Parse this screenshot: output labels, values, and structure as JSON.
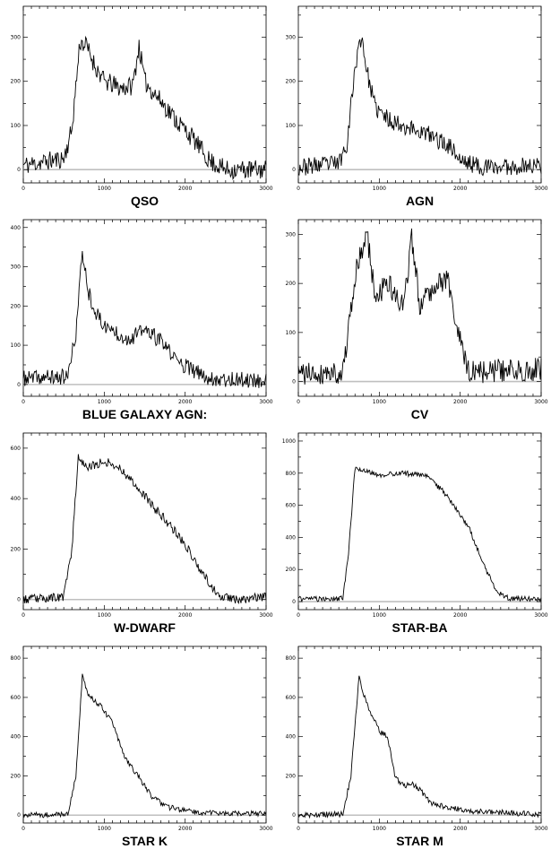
{
  "chart_data": [
    {
      "type": "line",
      "title": "QSO",
      "xlim": [
        0,
        3000
      ],
      "ylim": [
        -30,
        370
      ],
      "xticks": [
        "0",
        "1000",
        "2000",
        "3000"
      ],
      "yticks": [
        "0",
        "100",
        "200",
        "300"
      ],
      "ytick_values": [
        0,
        100,
        200,
        300
      ],
      "ytick_step": 50,
      "noise": 22,
      "seed": 11,
      "anchors": [
        [
          0,
          10
        ],
        [
          500,
          25
        ],
        [
          600,
          90
        ],
        [
          700,
          290
        ],
        [
          780,
          280
        ],
        [
          900,
          230
        ],
        [
          1000,
          200
        ],
        [
          1200,
          185
        ],
        [
          1350,
          190
        ],
        [
          1430,
          280
        ],
        [
          1500,
          200
        ],
        [
          1700,
          155
        ],
        [
          1900,
          110
        ],
        [
          2100,
          70
        ],
        [
          2300,
          20
        ],
        [
          2500,
          0
        ],
        [
          3000,
          0
        ]
      ],
      "series": [
        {
          "values": [],
          "color": "#000000"
        }
      ],
      "zero_line_color": "#bfbfbf"
    },
    {
      "type": "line",
      "title": "AGN",
      "xlim": [
        0,
        3000
      ],
      "ylim": [
        -30,
        370
      ],
      "xticks": [
        "0",
        "1000",
        "2000",
        "3000"
      ],
      "yticks": [
        "0",
        "100",
        "200",
        "300"
      ],
      "ytick_values": [
        0,
        100,
        200,
        300
      ],
      "ytick_step": 50,
      "noise": 20,
      "seed": 23,
      "anchors": [
        [
          0,
          5
        ],
        [
          500,
          15
        ],
        [
          600,
          60
        ],
        [
          700,
          230
        ],
        [
          780,
          305
        ],
        [
          850,
          220
        ],
        [
          950,
          140
        ],
        [
          1100,
          115
        ],
        [
          1300,
          100
        ],
        [
          1600,
          80
        ],
        [
          1900,
          50
        ],
        [
          2000,
          20
        ],
        [
          2300,
          5
        ],
        [
          3000,
          10
        ]
      ],
      "series": [
        {
          "values": [],
          "color": "#000000"
        }
      ],
      "zero_line_color": "#bfbfbf"
    },
    {
      "type": "line",
      "title": "BLUE GALAXY AGN:",
      "xlim": [
        0,
        3000
      ],
      "ylim": [
        -30,
        420
      ],
      "xticks": [
        "0",
        "1000",
        "2000",
        "3000"
      ],
      "yticks": [
        "0",
        "100",
        "200",
        "300",
        "400"
      ],
      "ytick_values": [
        0,
        100,
        200,
        300,
        400
      ],
      "ytick_step": 50,
      "noise": 20,
      "seed": 37,
      "anchors": [
        [
          0,
          15
        ],
        [
          550,
          20
        ],
        [
          650,
          130
        ],
        [
          730,
          340
        ],
        [
          800,
          240
        ],
        [
          900,
          180
        ],
        [
          1000,
          150
        ],
        [
          1300,
          115
        ],
        [
          1500,
          140
        ],
        [
          1700,
          110
        ],
        [
          1900,
          60
        ],
        [
          2100,
          35
        ],
        [
          2300,
          15
        ],
        [
          3000,
          10
        ]
      ],
      "series": [
        {
          "values": [],
          "color": "#000000"
        }
      ],
      "zero_line_color": "#bfbfbf"
    },
    {
      "type": "line",
      "title": "CV",
      "xlim": [
        0,
        3000
      ],
      "ylim": [
        -30,
        330
      ],
      "xticks": [
        "0",
        "1000",
        "2000",
        "3000"
      ],
      "yticks": [
        "0",
        "100",
        "200",
        "300"
      ],
      "ytick_values": [
        0,
        100,
        200,
        300
      ],
      "ytick_step": 50,
      "noise": 24,
      "seed": 41,
      "anchors": [
        [
          0,
          15
        ],
        [
          550,
          20
        ],
        [
          650,
          140
        ],
        [
          720,
          230
        ],
        [
          850,
          300
        ],
        [
          950,
          170
        ],
        [
          1100,
          200
        ],
        [
          1300,
          150
        ],
        [
          1400,
          290
        ],
        [
          1500,
          160
        ],
        [
          1700,
          200
        ],
        [
          1850,
          210
        ],
        [
          1950,
          110
        ],
        [
          2100,
          20
        ],
        [
          3000,
          25
        ]
      ],
      "series": [
        {
          "values": [],
          "color": "#000000"
        }
      ],
      "zero_line_color": "#bfbfbf"
    },
    {
      "type": "line",
      "title": "W-DWARF",
      "xlim": [
        0,
        3000
      ],
      "ylim": [
        -40,
        660
      ],
      "xticks": [
        "0",
        "1000",
        "2000",
        "3000"
      ],
      "yticks": [
        "0",
        "200",
        "400",
        "600"
      ],
      "ytick_values": [
        0,
        200,
        400,
        600
      ],
      "ytick_step": 100,
      "noise": 18,
      "seed": 53,
      "anchors": [
        [
          0,
          0
        ],
        [
          500,
          10
        ],
        [
          600,
          200
        ],
        [
          680,
          570
        ],
        [
          800,
          520
        ],
        [
          1000,
          550
        ],
        [
          1200,
          520
        ],
        [
          1400,
          450
        ],
        [
          1600,
          370
        ],
        [
          1800,
          300
        ],
        [
          2000,
          220
        ],
        [
          2200,
          110
        ],
        [
          2400,
          20
        ],
        [
          2600,
          0
        ],
        [
          3000,
          10
        ]
      ],
      "series": [
        {
          "values": [],
          "color": "#000000"
        }
      ],
      "zero_line_color": "#bfbfbf"
    },
    {
      "type": "line",
      "title": "STAR-BA",
      "xlim": [
        0,
        3000
      ],
      "ylim": [
        -50,
        1050
      ],
      "xticks": [
        "0",
        "1000",
        "2000",
        "3000"
      ],
      "yticks": [
        "0",
        "200",
        "400",
        "600",
        "800",
        "1000"
      ],
      "ytick_values": [
        0,
        200,
        400,
        600,
        800,
        1000
      ],
      "ytick_step": 100,
      "noise": 16,
      "seed": 61,
      "anchors": [
        [
          0,
          20
        ],
        [
          300,
          15
        ],
        [
          550,
          20
        ],
        [
          620,
          300
        ],
        [
          700,
          830
        ],
        [
          1000,
          790
        ],
        [
          1300,
          800
        ],
        [
          1600,
          780
        ],
        [
          1800,
          680
        ],
        [
          2100,
          470
        ],
        [
          2300,
          220
        ],
        [
          2450,
          60
        ],
        [
          2600,
          20
        ],
        [
          3000,
          15
        ]
      ],
      "series": [
        {
          "values": [],
          "color": "#000000"
        }
      ],
      "zero_line_color": "#bfbfbf"
    },
    {
      "type": "line",
      "title": "STAR K",
      "xlim": [
        0,
        3000
      ],
      "ylim": [
        -40,
        860
      ],
      "xticks": [
        "0",
        "1000",
        "2000",
        "3000"
      ],
      "yticks": [
        "0",
        "200",
        "400",
        "600",
        "800"
      ],
      "ytick_values": [
        0,
        200,
        400,
        600,
        800
      ],
      "ytick_step": 100,
      "noise": 14,
      "seed": 71,
      "anchors": [
        [
          0,
          0
        ],
        [
          550,
          5
        ],
        [
          650,
          200
        ],
        [
          730,
          710
        ],
        [
          800,
          610
        ],
        [
          950,
          560
        ],
        [
          1100,
          470
        ],
        [
          1250,
          300
        ],
        [
          1450,
          180
        ],
        [
          1600,
          90
        ],
        [
          1800,
          40
        ],
        [
          2100,
          15
        ],
        [
          3000,
          5
        ]
      ],
      "series": [
        {
          "values": [],
          "color": "#000000"
        }
      ],
      "zero_line_color": "#bfbfbf"
    },
    {
      "type": "line",
      "title": "STAR M",
      "xlim": [
        0,
        3000
      ],
      "ylim": [
        -40,
        860
      ],
      "xticks": [
        "0",
        "1000",
        "2000",
        "3000"
      ],
      "yticks": [
        "0",
        "200",
        "400",
        "600",
        "800"
      ],
      "ytick_values": [
        0,
        200,
        400,
        600,
        800
      ],
      "ytick_step": 100,
      "noise": 14,
      "seed": 83,
      "anchors": [
        [
          0,
          0
        ],
        [
          550,
          5
        ],
        [
          650,
          200
        ],
        [
          750,
          700
        ],
        [
          850,
          560
        ],
        [
          1000,
          430
        ],
        [
          1100,
          400
        ],
        [
          1200,
          190
        ],
        [
          1300,
          150
        ],
        [
          1400,
          160
        ],
        [
          1500,
          130
        ],
        [
          1650,
          60
        ],
        [
          1850,
          40
        ],
        [
          2100,
          20
        ],
        [
          3000,
          5
        ]
      ],
      "series": [
        {
          "values": [],
          "color": "#000000"
        }
      ],
      "zero_line_color": "#bfbfbf"
    }
  ]
}
